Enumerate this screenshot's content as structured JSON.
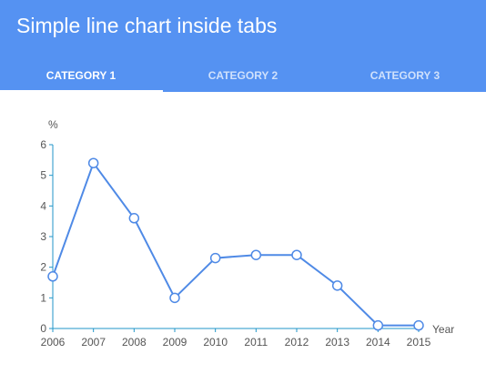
{
  "header": {
    "title": "Simple line chart inside tabs",
    "color": "#5592f2"
  },
  "tabs": [
    {
      "label": "CATEGORY 1",
      "active": true
    },
    {
      "label": "CATEGORY 2",
      "active": false
    },
    {
      "label": "CATEGORY 3",
      "active": false
    }
  ],
  "chart_data": {
    "type": "line",
    "title": "",
    "xlabel": "Year",
    "ylabel": "%",
    "x": [
      "2006",
      "2007",
      "2008",
      "2009",
      "2010",
      "2011",
      "2012",
      "2013",
      "2014",
      "2015"
    ],
    "series": [
      {
        "values": [
          1.7,
          5.4,
          3.6,
          1.0,
          2.3,
          2.4,
          2.4,
          1.4,
          0.1,
          0.1
        ],
        "color": "#4f8ae6"
      }
    ],
    "yticks": [
      "0",
      "1",
      "2",
      "3",
      "4",
      "5",
      "6"
    ],
    "ylim": [
      0,
      6
    ],
    "grid": false,
    "axis_color": "#2196c9"
  }
}
